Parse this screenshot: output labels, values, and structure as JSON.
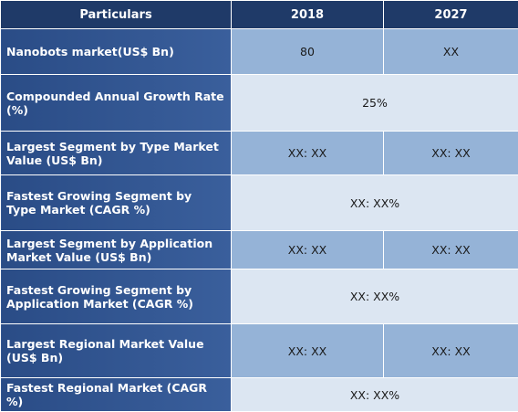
{
  "header": {
    "particulars": "Particulars",
    "year1": "2018",
    "year2": "2027"
  },
  "rows": [
    {
      "label": "Nanobots market(US$ Bn)",
      "v2018": "80",
      "v2027": "XX"
    },
    {
      "label": "Compounded Annual Growth Rate (%)",
      "value": "25%"
    },
    {
      "label": "Largest Segment by Type Market Value (US$ Bn)",
      "v2018": "XX: XX",
      "v2027": "XX: XX"
    },
    {
      "label": "Fastest Growing Segment by Type Market (CAGR %)",
      "value": "XX: XX%"
    },
    {
      "label": "Largest Segment by Application Market Value (US$ Bn)",
      "v2018": "XX: XX",
      "v2027": "XX: XX"
    },
    {
      "label": "Fastest Growing Segment by Application Market (CAGR %)",
      "value": "XX: XX%"
    },
    {
      "label": "Largest Regional Market Value (US$ Bn)",
      "v2018": "XX: XX",
      "v2027": "XX: XX"
    },
    {
      "label": "Fastest Regional Market (CAGR %)",
      "value": "XX: XX%"
    }
  ]
}
